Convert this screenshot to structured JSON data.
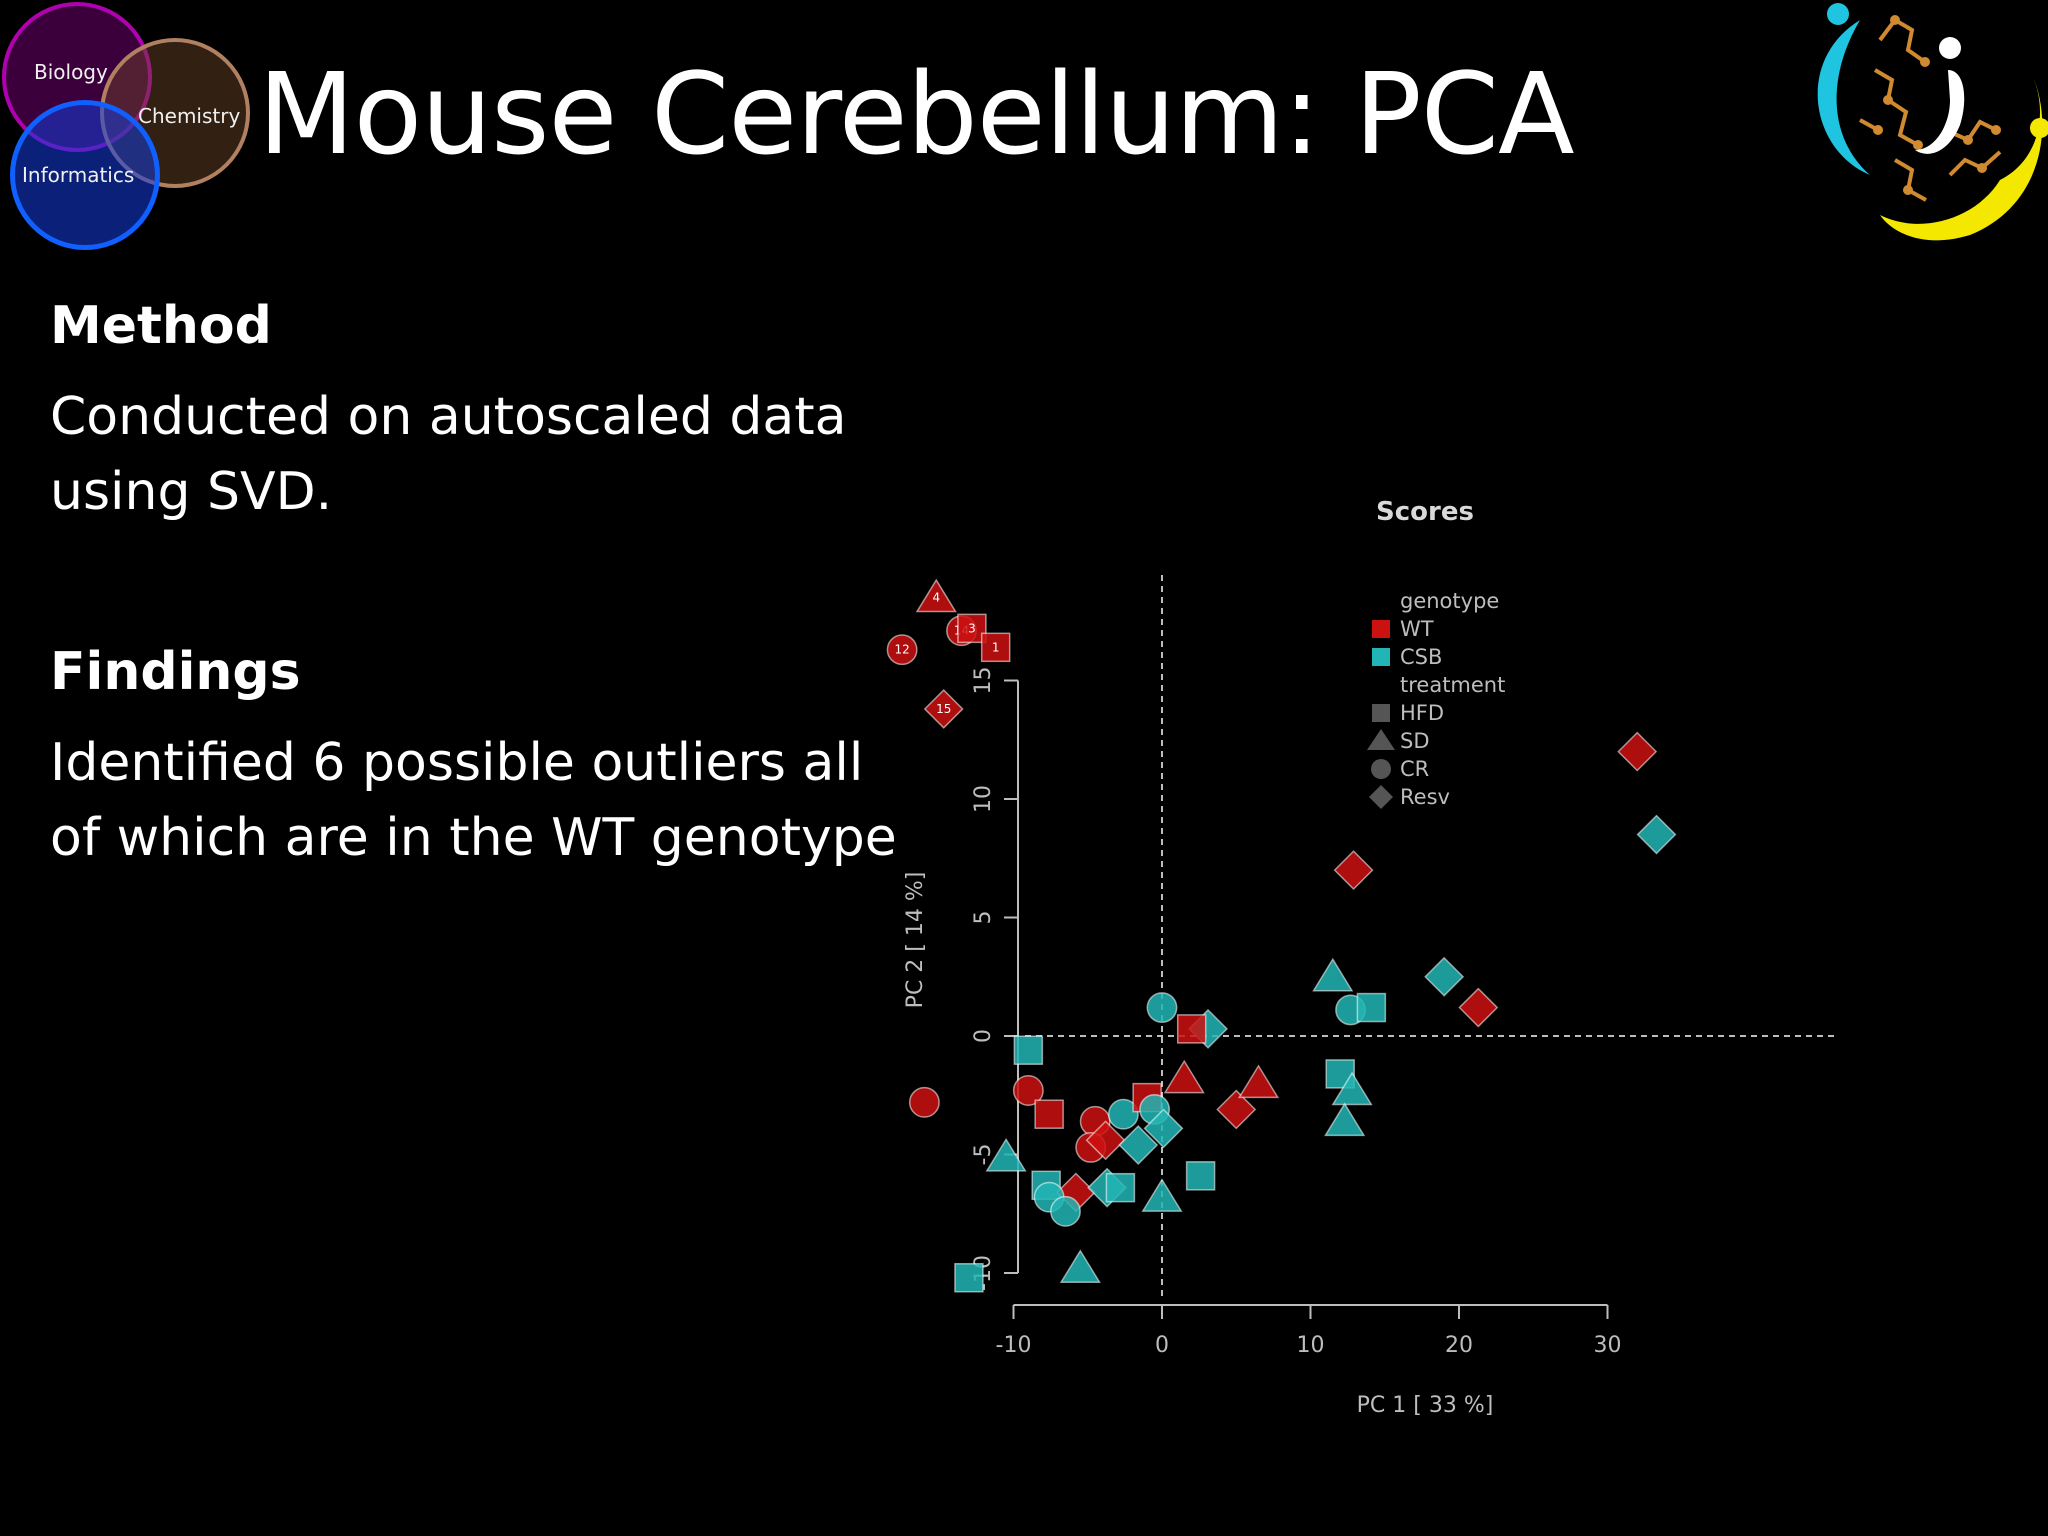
{
  "slide": {
    "title": "Mouse Cerebellum: PCA",
    "logo_left": {
      "biology": "Biology",
      "chemistry": "Chemistry",
      "informatics": "Informatics"
    },
    "method_heading": "Method",
    "method_text": "Conducted on autoscaled data using SVD.",
    "findings_heading": "Findings",
    "findings_text": "Identified 6 possible outliers all of which are in the WT genotype"
  },
  "colors": {
    "wt": "#cc1111",
    "csb": "#22b5b5",
    "background": "#000000"
  },
  "chart_data": {
    "type": "scatter",
    "title": "Scores",
    "xlabel": "PC 1 [ 33 %]",
    "ylabel": "PC 2 [ 14 %]",
    "xlim": [
      -20,
      35
    ],
    "ylim": [
      -11,
      19
    ],
    "xticks": [
      -10,
      0,
      10,
      20,
      30
    ],
    "yticks": [
      -10,
      -5,
      0,
      5,
      10,
      15
    ],
    "grid": false,
    "reference_lines": {
      "x": 0,
      "y": 0
    },
    "legend": {
      "placement": "top-center",
      "genotype_title": "genotype",
      "genotype": [
        {
          "label": "WT",
          "color": "#cc1111"
        },
        {
          "label": "CSB",
          "color": "#22b5b5"
        }
      ],
      "treatment_title": "treatment",
      "treatment": [
        {
          "label": "HFD",
          "shape": "square"
        },
        {
          "label": "SD",
          "shape": "triangle"
        },
        {
          "label": "CR",
          "shape": "circle"
        },
        {
          "label": "Resv",
          "shape": "diamond"
        }
      ]
    },
    "points": [
      {
        "x": -15.2,
        "y": 18.5,
        "genotype": "WT",
        "treatment": "SD",
        "label": "4"
      },
      {
        "x": -13.5,
        "y": 17.1,
        "genotype": "WT",
        "treatment": "CR",
        "label": "14"
      },
      {
        "x": -12.8,
        "y": 17.2,
        "genotype": "WT",
        "treatment": "HFD",
        "label": "3"
      },
      {
        "x": -17.5,
        "y": 16.3,
        "genotype": "WT",
        "treatment": "CR",
        "label": "12"
      },
      {
        "x": -11.2,
        "y": 16.4,
        "genotype": "WT",
        "treatment": "HFD",
        "label": "1"
      },
      {
        "x": -14.7,
        "y": 13.8,
        "genotype": "WT",
        "treatment": "Resv",
        "label": "15"
      },
      {
        "x": 32.0,
        "y": 12.0,
        "genotype": "WT",
        "treatment": "Resv"
      },
      {
        "x": 33.3,
        "y": 8.5,
        "genotype": "CSB",
        "treatment": "Resv"
      },
      {
        "x": 12.9,
        "y": 7.0,
        "genotype": "WT",
        "treatment": "Resv"
      },
      {
        "x": 19.0,
        "y": 2.5,
        "genotype": "CSB",
        "treatment": "Resv"
      },
      {
        "x": 11.5,
        "y": 2.5,
        "genotype": "CSB",
        "treatment": "SD"
      },
      {
        "x": 21.3,
        "y": 1.2,
        "genotype": "WT",
        "treatment": "Resv"
      },
      {
        "x": 12.7,
        "y": 1.1,
        "genotype": "CSB",
        "treatment": "CR"
      },
      {
        "x": 14.1,
        "y": 1.2,
        "genotype": "CSB",
        "treatment": "HFD"
      },
      {
        "x": 0.0,
        "y": 1.2,
        "genotype": "CSB",
        "treatment": "CR"
      },
      {
        "x": 3.1,
        "y": 0.3,
        "genotype": "CSB",
        "treatment": "Resv"
      },
      {
        "x": 2.0,
        "y": 0.3,
        "genotype": "WT",
        "treatment": "HFD"
      },
      {
        "x": -9.0,
        "y": -0.6,
        "genotype": "CSB",
        "treatment": "HFD"
      },
      {
        "x": -16.0,
        "y": -2.8,
        "genotype": "WT",
        "treatment": "CR"
      },
      {
        "x": -9.0,
        "y": -2.3,
        "genotype": "WT",
        "treatment": "CR"
      },
      {
        "x": -7.6,
        "y": -3.3,
        "genotype": "WT",
        "treatment": "HFD"
      },
      {
        "x": -4.5,
        "y": -3.6,
        "genotype": "WT",
        "treatment": "CR"
      },
      {
        "x": -4.8,
        "y": -4.7,
        "genotype": "WT",
        "treatment": "CR"
      },
      {
        "x": -3.8,
        "y": -4.4,
        "genotype": "WT",
        "treatment": "Resv"
      },
      {
        "x": -2.6,
        "y": -3.3,
        "genotype": "CSB",
        "treatment": "CR"
      },
      {
        "x": -1.0,
        "y": -2.6,
        "genotype": "WT",
        "treatment": "HFD"
      },
      {
        "x": -0.5,
        "y": -3.1,
        "genotype": "CSB",
        "treatment": "CR"
      },
      {
        "x": 0.1,
        "y": -3.9,
        "genotype": "CSB",
        "treatment": "Resv"
      },
      {
        "x": -1.6,
        "y": -4.6,
        "genotype": "CSB",
        "treatment": "Resv"
      },
      {
        "x": 1.5,
        "y": -1.8,
        "genotype": "WT",
        "treatment": "SD"
      },
      {
        "x": 5.0,
        "y": -3.1,
        "genotype": "WT",
        "treatment": "Resv"
      },
      {
        "x": 6.5,
        "y": -2.0,
        "genotype": "WT",
        "treatment": "SD"
      },
      {
        "x": 12.0,
        "y": -1.6,
        "genotype": "CSB",
        "treatment": "HFD"
      },
      {
        "x": 12.8,
        "y": -2.3,
        "genotype": "CSB",
        "treatment": "SD"
      },
      {
        "x": 12.3,
        "y": -3.6,
        "genotype": "CSB",
        "treatment": "SD"
      },
      {
        "x": -10.5,
        "y": -5.1,
        "genotype": "CSB",
        "treatment": "SD"
      },
      {
        "x": -7.8,
        "y": -6.3,
        "genotype": "CSB",
        "treatment": "HFD"
      },
      {
        "x": -5.8,
        "y": -6.6,
        "genotype": "WT",
        "treatment": "Resv"
      },
      {
        "x": -3.7,
        "y": -6.4,
        "genotype": "CSB",
        "treatment": "Resv"
      },
      {
        "x": -2.8,
        "y": -6.4,
        "genotype": "CSB",
        "treatment": "HFD"
      },
      {
        "x": -7.6,
        "y": -6.8,
        "genotype": "CSB",
        "treatment": "CR"
      },
      {
        "x": -6.5,
        "y": -7.4,
        "genotype": "CSB",
        "treatment": "CR"
      },
      {
        "x": 0.0,
        "y": -6.8,
        "genotype": "CSB",
        "treatment": "SD"
      },
      {
        "x": 2.6,
        "y": -5.9,
        "genotype": "CSB",
        "treatment": "HFD"
      },
      {
        "x": -13.0,
        "y": -10.2,
        "genotype": "CSB",
        "treatment": "HFD"
      },
      {
        "x": -5.5,
        "y": -9.8,
        "genotype": "CSB",
        "treatment": "SD"
      }
    ]
  }
}
